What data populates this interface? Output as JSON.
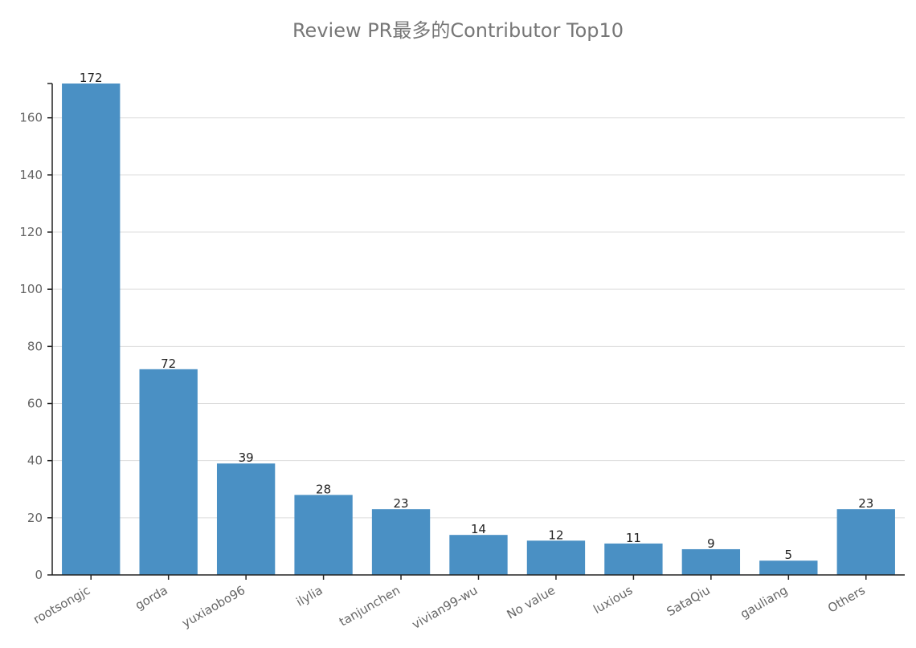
{
  "chart_data": {
    "type": "bar",
    "title": "Review PR最多的Contributor Top10",
    "xlabel": "",
    "ylabel": "",
    "categories": [
      "rootsongjc",
      "gorda",
      "yuxiaobo96",
      "ilylia",
      "tanjunchen",
      "vivian99-wu",
      "No value",
      "luxious",
      "SataQiu",
      "gauliang",
      "Others"
    ],
    "values": [
      172,
      72,
      39,
      28,
      23,
      14,
      12,
      11,
      9,
      5,
      23
    ],
    "ylim": [
      0,
      172
    ],
    "yticks": [
      0,
      20,
      40,
      60,
      80,
      100,
      120,
      140,
      160
    ],
    "grid": true,
    "bar_color": "#4a90c4"
  }
}
